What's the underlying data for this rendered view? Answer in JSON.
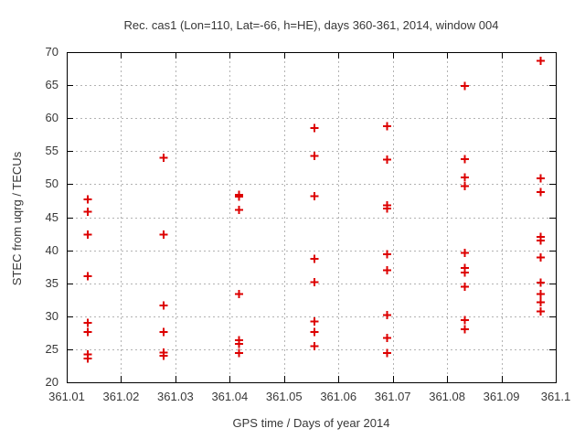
{
  "chart_data": {
    "type": "scatter",
    "title": "Rec. cas1 (Lon=110, Lat=-66, h=HE), days 360-361, 2014, window 004",
    "xlabel": "GPS time / Days of year 2014",
    "ylabel": "STEC from uqrg / TECUs",
    "xlim": [
      361.01,
      361.1
    ],
    "ylim": [
      20,
      70
    ],
    "xtick_labels": [
      "361.01",
      "361.02",
      "361.03",
      "361.04",
      "361.05",
      "361.06",
      "361.07",
      "361.08",
      "361.09",
      "361.1"
    ],
    "ytick_labels": [
      "20",
      "25",
      "30",
      "35",
      "40",
      "45",
      "50",
      "55",
      "60",
      "65",
      "70"
    ],
    "grid": true,
    "legend": "none",
    "marker": "plus",
    "marker_color": "#dd0000",
    "grid_color": "#b3b3b3",
    "axis_color": "#000000",
    "text_color": "#383838",
    "series": [
      {
        "name": "STEC",
        "points": [
          [
            361.0139,
            47.7
          ],
          [
            361.0139,
            45.8
          ],
          [
            361.0139,
            42.4
          ],
          [
            361.0139,
            36.1
          ],
          [
            361.0139,
            29.0
          ],
          [
            361.0139,
            27.6
          ],
          [
            361.0139,
            24.2
          ],
          [
            361.0139,
            23.6
          ],
          [
            361.0278,
            54.0
          ],
          [
            361.0278,
            42.4
          ],
          [
            361.0278,
            31.6
          ],
          [
            361.0278,
            27.6
          ],
          [
            361.0278,
            24.5
          ],
          [
            361.0278,
            24.0
          ],
          [
            361.0417,
            48.4
          ],
          [
            361.0417,
            48.1
          ],
          [
            361.0417,
            46.1
          ],
          [
            361.0417,
            33.4
          ],
          [
            361.0417,
            26.4
          ],
          [
            361.0417,
            25.8
          ],
          [
            361.0417,
            24.4
          ],
          [
            361.0556,
            58.5
          ],
          [
            361.0556,
            54.3
          ],
          [
            361.0556,
            48.2
          ],
          [
            361.0556,
            38.7
          ],
          [
            361.0556,
            35.2
          ],
          [
            361.0556,
            29.2
          ],
          [
            361.0556,
            27.6
          ],
          [
            361.0556,
            25.5
          ],
          [
            361.069,
            58.8
          ],
          [
            361.069,
            53.7
          ],
          [
            361.069,
            46.8
          ],
          [
            361.069,
            46.3
          ],
          [
            361.069,
            39.4
          ],
          [
            361.069,
            37.0
          ],
          [
            361.069,
            30.2
          ],
          [
            361.069,
            26.7
          ],
          [
            361.069,
            24.4
          ],
          [
            361.0833,
            64.9
          ],
          [
            361.0833,
            53.8
          ],
          [
            361.0833,
            51.0
          ],
          [
            361.0833,
            49.7
          ],
          [
            361.0833,
            39.6
          ],
          [
            361.0833,
            37.3
          ],
          [
            361.0833,
            36.6
          ],
          [
            361.0833,
            34.5
          ],
          [
            361.0833,
            29.4
          ],
          [
            361.0833,
            28.0
          ],
          [
            361.0972,
            68.7
          ],
          [
            361.0972,
            50.9
          ],
          [
            361.0972,
            48.8
          ],
          [
            361.0972,
            42.0
          ],
          [
            361.0972,
            41.5
          ],
          [
            361.0972,
            38.9
          ],
          [
            361.0972,
            35.1
          ],
          [
            361.0972,
            33.4
          ],
          [
            361.0972,
            32.1
          ],
          [
            361.0972,
            30.7
          ]
        ]
      }
    ]
  }
}
